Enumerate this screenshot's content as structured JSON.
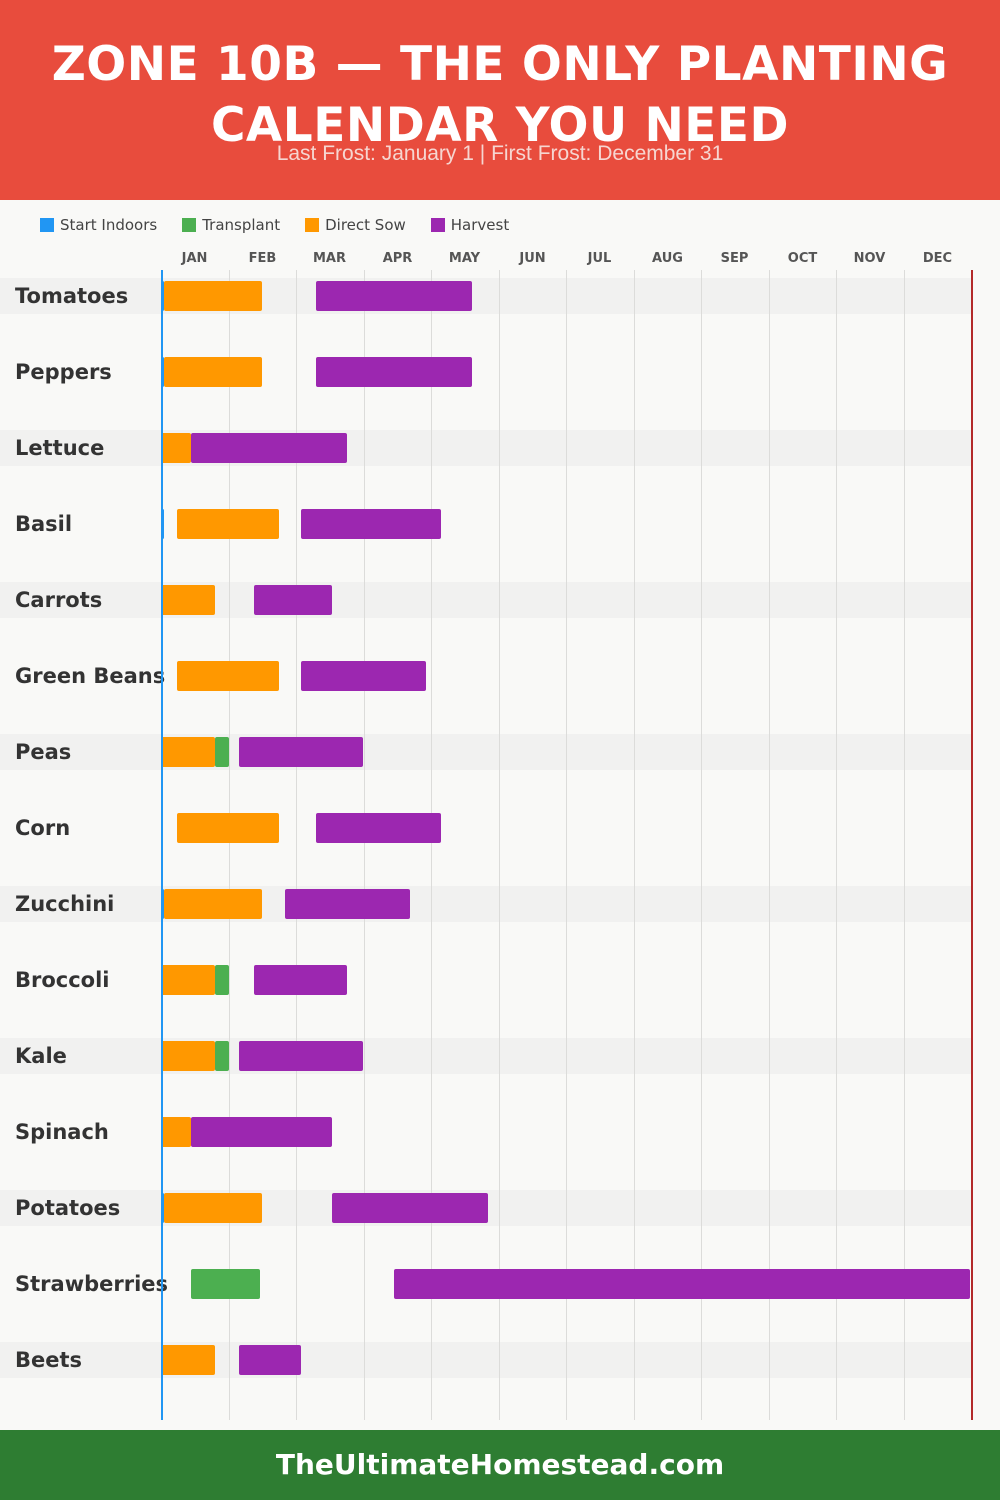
{
  "header": {
    "title_line1": "ZONE 10B — THE ONLY PLANTING",
    "title_line2": "CALENDAR YOU NEED",
    "subtitle": "Last Frost: January 1 | First Frost: December 31"
  },
  "colors": {
    "header_bg": "#e84c3d",
    "footer_bg": "#2e7d32",
    "start_indoors": "#2196f3",
    "transplant": "#4caf50",
    "direct_sow": "#ff9800",
    "harvest": "#9c27b0",
    "last_frost_line": "#2196f3",
    "first_frost_line": "#b32a2a"
  },
  "legend": [
    {
      "label": "Start Indoors",
      "key": "start_indoors"
    },
    {
      "label": "Transplant",
      "key": "transplant"
    },
    {
      "label": "Direct Sow",
      "key": "direct_sow"
    },
    {
      "label": "Harvest",
      "key": "harvest"
    }
  ],
  "chart_data": {
    "type": "gantt",
    "months": [
      "JAN",
      "FEB",
      "MAR",
      "APR",
      "MAY",
      "JUN",
      "JUL",
      "AUG",
      "SEP",
      "OCT",
      "NOV",
      "DEC"
    ],
    "x_unit": "month (0 = start of January, 12 = end of December)",
    "frost_lines": {
      "last_frost": 0.0,
      "first_frost": 12.0
    },
    "crops": [
      {
        "name": "Tomatoes",
        "segments": [
          {
            "type": "start_indoors",
            "start": 0.0,
            "end": 0.05
          },
          {
            "type": "direct_sow",
            "start": 0.05,
            "end": 1.5
          },
          {
            "type": "harvest",
            "start": 2.3,
            "end": 4.6
          }
        ]
      },
      {
        "name": "Peppers",
        "segments": [
          {
            "type": "start_indoors",
            "start": 0.0,
            "end": 0.05
          },
          {
            "type": "direct_sow",
            "start": 0.05,
            "end": 1.5
          },
          {
            "type": "harvest",
            "start": 2.3,
            "end": 4.6
          }
        ]
      },
      {
        "name": "Lettuce",
        "segments": [
          {
            "type": "direct_sow",
            "start": 0.0,
            "end": 0.45
          },
          {
            "type": "harvest",
            "start": 0.45,
            "end": 2.75
          }
        ]
      },
      {
        "name": "Basil",
        "segments": [
          {
            "type": "start_indoors",
            "start": 0.0,
            "end": 0.05
          },
          {
            "type": "direct_sow",
            "start": 0.23,
            "end": 1.75
          },
          {
            "type": "harvest",
            "start": 2.07,
            "end": 4.15
          }
        ]
      },
      {
        "name": "Carrots",
        "segments": [
          {
            "type": "direct_sow",
            "start": 0.0,
            "end": 0.8
          },
          {
            "type": "harvest",
            "start": 1.38,
            "end": 2.53
          }
        ]
      },
      {
        "name": "Green Beans",
        "segments": [
          {
            "type": "direct_sow",
            "start": 0.23,
            "end": 1.75
          },
          {
            "type": "harvest",
            "start": 2.07,
            "end": 3.92
          }
        ]
      },
      {
        "name": "Peas",
        "segments": [
          {
            "type": "direct_sow",
            "start": 0.0,
            "end": 0.8
          },
          {
            "type": "transplant",
            "start": 0.8,
            "end": 1.0
          },
          {
            "type": "harvest",
            "start": 1.15,
            "end": 3.0
          }
        ]
      },
      {
        "name": "Corn",
        "segments": [
          {
            "type": "direct_sow",
            "start": 0.23,
            "end": 1.75
          },
          {
            "type": "harvest",
            "start": 2.3,
            "end": 4.15
          }
        ]
      },
      {
        "name": "Zucchini",
        "segments": [
          {
            "type": "start_indoors",
            "start": 0.0,
            "end": 0.05
          },
          {
            "type": "direct_sow",
            "start": 0.05,
            "end": 1.5
          },
          {
            "type": "harvest",
            "start": 1.84,
            "end": 3.69
          }
        ]
      },
      {
        "name": "Broccoli",
        "segments": [
          {
            "type": "direct_sow",
            "start": 0.0,
            "end": 0.8
          },
          {
            "type": "transplant",
            "start": 0.8,
            "end": 1.0
          },
          {
            "type": "harvest",
            "start": 1.38,
            "end": 2.76
          }
        ]
      },
      {
        "name": "Kale",
        "segments": [
          {
            "type": "direct_sow",
            "start": 0.0,
            "end": 0.8
          },
          {
            "type": "transplant",
            "start": 0.8,
            "end": 1.0
          },
          {
            "type": "harvest",
            "start": 1.15,
            "end": 3.0
          }
        ]
      },
      {
        "name": "Spinach",
        "segments": [
          {
            "type": "direct_sow",
            "start": 0.0,
            "end": 0.45
          },
          {
            "type": "harvest",
            "start": 0.45,
            "end": 2.53
          }
        ]
      },
      {
        "name": "Potatoes",
        "segments": [
          {
            "type": "start_indoors",
            "start": 0.0,
            "end": 0.05
          },
          {
            "type": "direct_sow",
            "start": 0.05,
            "end": 1.5
          },
          {
            "type": "harvest",
            "start": 2.53,
            "end": 4.84
          }
        ]
      },
      {
        "name": "Strawberries",
        "segments": [
          {
            "type": "transplant",
            "start": 0.45,
            "end": 1.46
          },
          {
            "type": "harvest",
            "start": 3.45,
            "end": 11.98
          }
        ]
      },
      {
        "name": "Beets",
        "segments": [
          {
            "type": "direct_sow",
            "start": 0.0,
            "end": 0.8
          },
          {
            "type": "harvest",
            "start": 1.15,
            "end": 2.07
          }
        ]
      }
    ]
  },
  "footer": {
    "text": "TheUltimateHomestead.com"
  }
}
